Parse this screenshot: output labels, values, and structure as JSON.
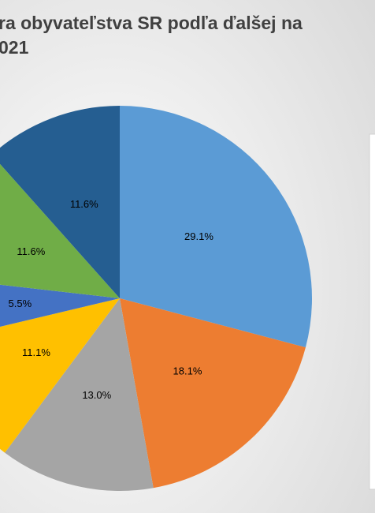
{
  "chart_data": {
    "type": "pie",
    "title": [
      "ra obyvateľstva SR podľa ďalšej na",
      "021"
    ],
    "values": [
      29.1,
      18.1,
      13.0,
      11.1,
      5.5,
      11.6,
      11.6
    ],
    "value_labels": [
      "29.1%",
      "18.1%",
      "13.0%",
      "11.1%",
      "5.5%",
      "11.6%",
      "11.6%"
    ],
    "colors": [
      "#5b9bd5",
      "#ed7d31",
      "#a5a5a5",
      "#ffc000",
      "#4472c4",
      "#70ad47",
      "#255e91"
    ]
  }
}
